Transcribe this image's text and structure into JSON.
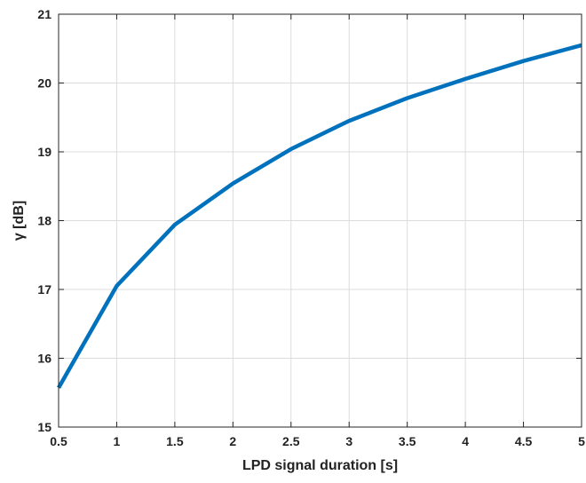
{
  "chart_data": {
    "type": "line",
    "title": "",
    "xlabel": "LPD signal duration [s]",
    "ylabel": "γ [dB]",
    "xlim": [
      0.5,
      5
    ],
    "ylim": [
      15,
      21
    ],
    "xticks": [
      0.5,
      1,
      1.5,
      2,
      2.5,
      3,
      3.5,
      4,
      4.5,
      5
    ],
    "xtick_labels": [
      "0.5",
      "1",
      "1.5",
      "2",
      "2.5",
      "3",
      "3.5",
      "4",
      "4.5",
      "5"
    ],
    "yticks": [
      15,
      16,
      17,
      18,
      19,
      20,
      21
    ],
    "ytick_labels": [
      "15",
      "16",
      "17",
      "18",
      "19",
      "20",
      "21"
    ],
    "grid": true,
    "line_color": "#0072BD",
    "series": [
      {
        "x": [
          0.5,
          1,
          1.5,
          2,
          2.5,
          3,
          3.5,
          4,
          4.5,
          5
        ],
        "values": [
          15.57,
          17.05,
          17.94,
          18.54,
          19.04,
          19.45,
          19.78,
          20.06,
          20.32,
          20.55
        ]
      }
    ]
  }
}
